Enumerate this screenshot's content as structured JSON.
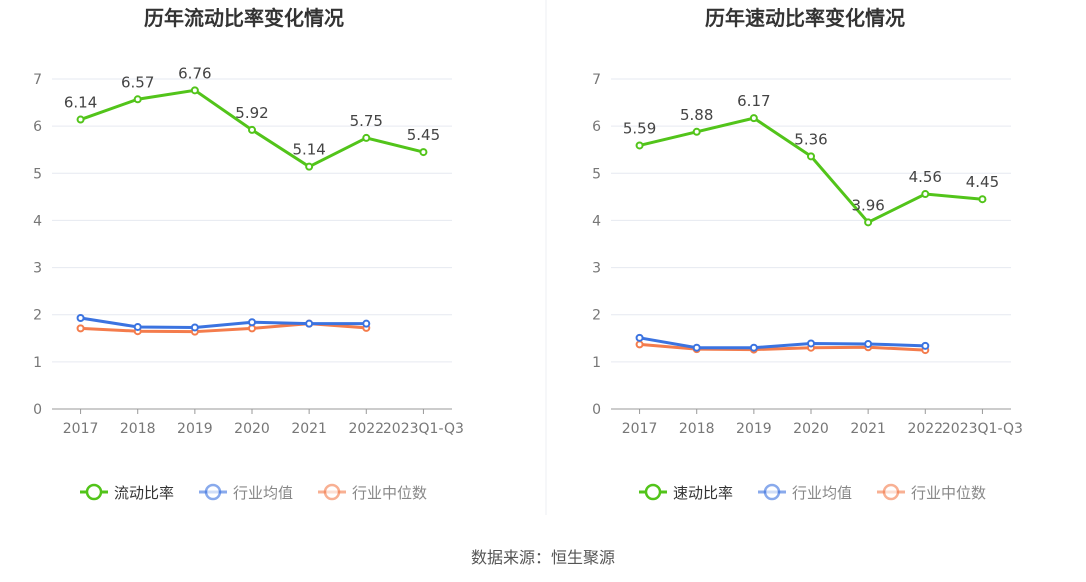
{
  "source": "数据来源：恒生聚源",
  "chart_data": [
    {
      "type": "line",
      "title": "历年流动比率变化情况",
      "categories": [
        "2017",
        "2018",
        "2019",
        "2020",
        "2021",
        "2022",
        "2023Q1-Q3"
      ],
      "ylim": [
        0,
        7
      ],
      "yticks": [
        0,
        1,
        2,
        3,
        4,
        5,
        6,
        7
      ],
      "legend_position": "bottom",
      "series": [
        {
          "name": "流动比率",
          "color": "#52c41a",
          "values": [
            6.14,
            6.57,
            6.76,
            5.92,
            5.14,
            5.75,
            5.45
          ],
          "labels": [
            "6.14",
            "6.57",
            "6.76",
            "5.92",
            "5.14",
            "5.75",
            "5.45"
          ]
        },
        {
          "name": "行业均值",
          "color": "#3b73e0",
          "values": [
            1.93,
            1.74,
            1.73,
            1.84,
            1.81,
            1.81,
            null
          ]
        },
        {
          "name": "行业中位数",
          "color": "#f47c4c",
          "values": [
            1.71,
            1.65,
            1.64,
            1.71,
            1.81,
            1.72,
            null
          ]
        }
      ]
    },
    {
      "type": "line",
      "title": "历年速动比率变化情况",
      "categories": [
        "2017",
        "2018",
        "2019",
        "2020",
        "2021",
        "2022",
        "2023Q1-Q3"
      ],
      "ylim": [
        0,
        7
      ],
      "yticks": [
        0,
        1,
        2,
        3,
        4,
        5,
        6,
        7
      ],
      "legend_position": "bottom",
      "series": [
        {
          "name": "速动比率",
          "color": "#52c41a",
          "values": [
            5.59,
            5.88,
            6.17,
            5.36,
            3.96,
            4.56,
            4.45
          ],
          "labels": [
            "5.59",
            "5.88",
            "6.17",
            "5.36",
            "3.96",
            "4.56",
            "4.45"
          ]
        },
        {
          "name": "行业均值",
          "color": "#3b73e0",
          "values": [
            1.51,
            1.3,
            1.3,
            1.39,
            1.38,
            1.34,
            null
          ]
        },
        {
          "name": "行业中位数",
          "color": "#f47c4c",
          "values": [
            1.37,
            1.27,
            1.26,
            1.3,
            1.31,
            1.25,
            null
          ]
        }
      ]
    }
  ]
}
